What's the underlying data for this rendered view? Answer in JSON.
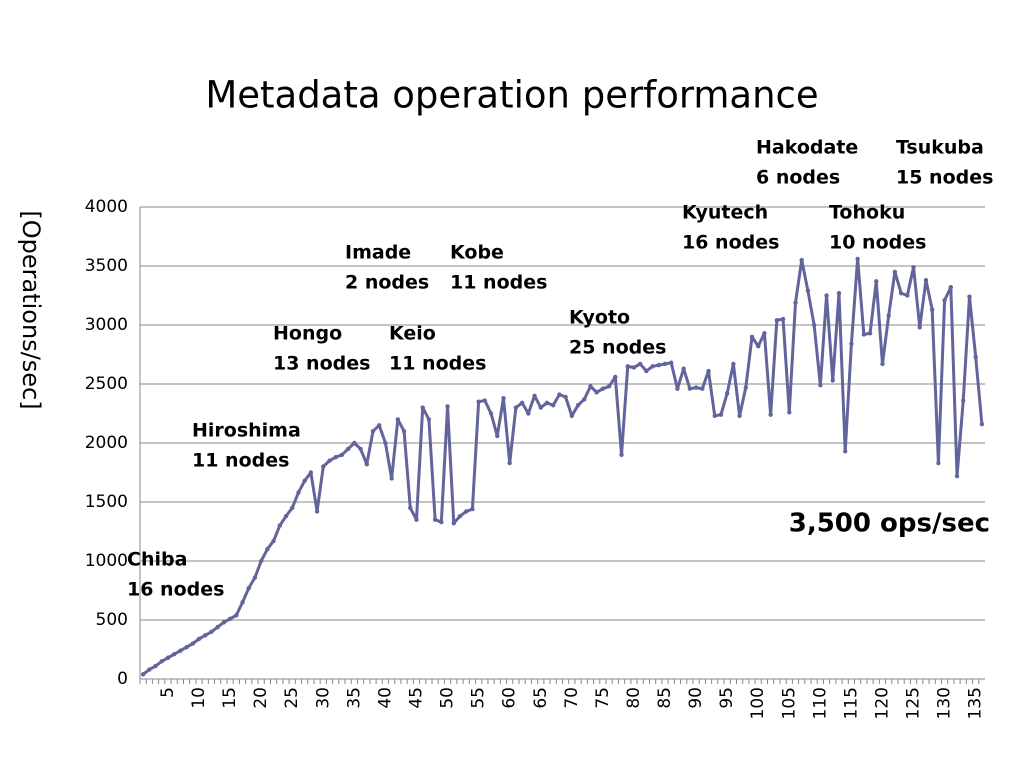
{
  "chart_data": {
    "type": "line",
    "title": "Metadata operation performance",
    "y_label": "[Operations/sec]",
    "categories": [
      null,
      null,
      null,
      null,
      "5",
      null,
      null,
      null,
      null,
      "10",
      null,
      null,
      null,
      null,
      "15",
      null,
      null,
      null,
      null,
      "20",
      null,
      null,
      null,
      null,
      "25",
      null,
      null,
      null,
      null,
      "30",
      null,
      null,
      null,
      null,
      "35",
      null,
      null,
      null,
      null,
      "40",
      null,
      null,
      null,
      null,
      "45",
      null,
      null,
      null,
      null,
      "50",
      null,
      null,
      null,
      null,
      "55",
      null,
      null,
      null,
      null,
      "60",
      null,
      null,
      null,
      null,
      "65",
      null,
      null,
      null,
      null,
      "70",
      null,
      null,
      null,
      null,
      "75",
      null,
      null,
      null,
      null,
      "80",
      null,
      null,
      null,
      null,
      "85",
      null,
      null,
      null,
      null,
      "90",
      null,
      null,
      null,
      null,
      "95",
      null,
      null,
      null,
      null,
      "100",
      null,
      null,
      null,
      null,
      "105",
      null,
      null,
      null,
      null,
      "110",
      null,
      null,
      null,
      null,
      "115",
      null,
      null,
      null,
      null,
      "120",
      null,
      null,
      null,
      null,
      "125",
      null,
      null,
      null,
      null,
      "130",
      null,
      null,
      null,
      null,
      "135",
      null
    ],
    "series": [
      {
        "name": "Operations/sec",
        "color": "#62649c",
        "values": [
          40,
          80,
          110,
          150,
          180,
          210,
          240,
          270,
          300,
          340,
          370,
          400,
          440,
          480,
          510,
          540,
          650,
          770,
          860,
          1000,
          1100,
          1170,
          1300,
          1380,
          1450,
          1580,
          1680,
          1750,
          1420,
          1800,
          1850,
          1880,
          1900,
          1950,
          2000,
          1950,
          1820,
          2100,
          2150,
          2000,
          1700,
          2200,
          2100,
          1450,
          1350,
          2300,
          2200,
          1350,
          1330,
          2310,
          1320,
          1380,
          1420,
          1440,
          2350,
          2360,
          2250,
          2060,
          2380,
          1830,
          2300,
          2340,
          2250,
          2400,
          2300,
          2340,
          2320,
          2410,
          2390,
          2230,
          2320,
          2370,
          2480,
          2430,
          2460,
          2480,
          2560,
          1900,
          2650,
          2640,
          2670,
          2610,
          2650,
          2660,
          2670,
          2680,
          2460,
          2630,
          2460,
          2470,
          2460,
          2610,
          2230,
          2240,
          2420,
          2670,
          2230,
          2470,
          2900,
          2820,
          2930,
          2240,
          3040,
          3050,
          2260,
          3190,
          3550,
          3290,
          3000,
          2490,
          3250,
          2530,
          3270,
          1930,
          2840,
          3560,
          2920,
          2930,
          3370,
          2670,
          3080,
          3450,
          3270,
          3250,
          3490,
          2980,
          3380,
          3130,
          1830,
          3210,
          3320,
          1720,
          2360,
          3240,
          2730,
          2160
        ]
      }
    ],
    "ylim": [
      0,
      4000
    ],
    "yticks": [
      0,
      500,
      1000,
      1500,
      2000,
      2500,
      3000,
      3500,
      4000
    ],
    "grid": true,
    "annotations": [
      [
        "Chiba",
        "16 nodes"
      ],
      [
        "Hiroshima",
        "11 nodes"
      ],
      [
        "Hongo",
        "13 nodes"
      ],
      [
        "Keio",
        "11 nodes"
      ],
      [
        "Imade",
        "2 nodes"
      ],
      [
        "Kobe",
        "11 nodes"
      ],
      [
        "Kyoto",
        "25 nodes"
      ],
      [
        "Kyutech",
        "16 nodes"
      ],
      [
        "Tohoku",
        "10 nodes"
      ],
      [
        "Hakodate",
        "6 nodes"
      ],
      [
        "Tsukuba",
        "15 nodes"
      ]
    ],
    "highlight": "3,500 ops/sec"
  }
}
